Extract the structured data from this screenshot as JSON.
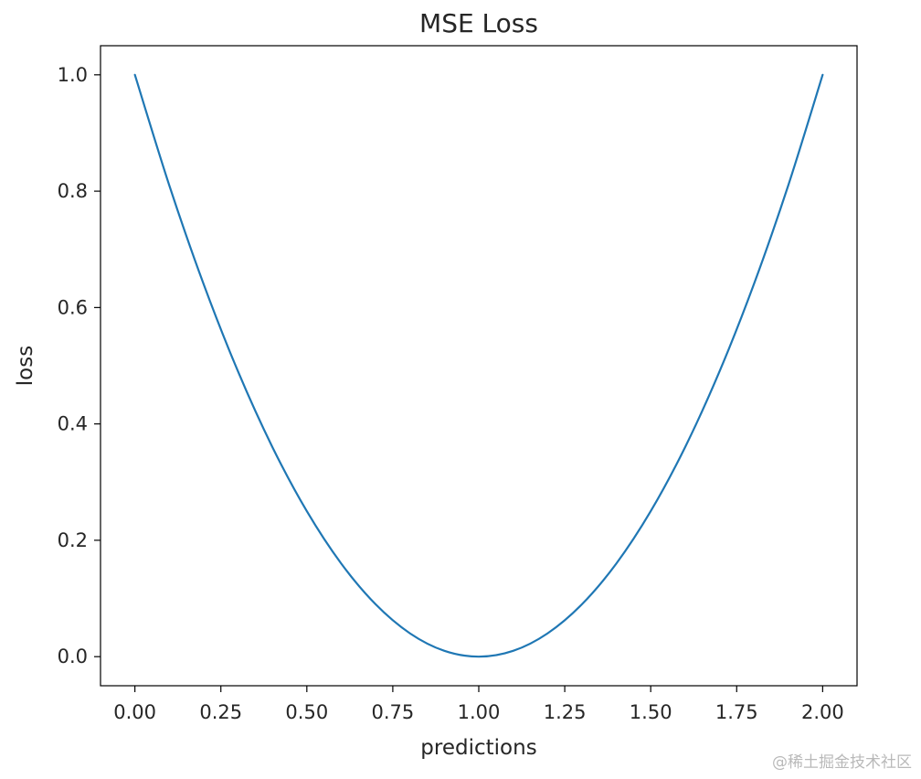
{
  "chart_data": {
    "type": "line",
    "title": "MSE Loss",
    "xlabel": "predictions",
    "ylabel": "loss",
    "xlim": [
      -0.1,
      2.1
    ],
    "ylim": [
      -0.05,
      1.05
    ],
    "xticks": [
      0.0,
      0.25,
      0.5,
      0.75,
      1.0,
      1.25,
      1.5,
      1.75,
      2.0
    ],
    "xtick_labels": [
      "0.00",
      "0.25",
      "0.50",
      "0.75",
      "1.00",
      "1.25",
      "1.50",
      "1.75",
      "2.00"
    ],
    "yticks": [
      0.0,
      0.2,
      0.4,
      0.6,
      0.8,
      1.0
    ],
    "ytick_labels": [
      "0.0",
      "0.2",
      "0.4",
      "0.6",
      "0.8",
      "1.0"
    ],
    "grid": false,
    "series": [
      {
        "name": "MSE loss",
        "color": "#1f77b4",
        "x": [
          0.0,
          0.1,
          0.2,
          0.3,
          0.4,
          0.5,
          0.6,
          0.7,
          0.8,
          0.9,
          1.0,
          1.1,
          1.2,
          1.3,
          1.4,
          1.5,
          1.6,
          1.7,
          1.8,
          1.9,
          2.0
        ],
        "values": [
          1.0,
          0.81,
          0.64,
          0.49,
          0.36,
          0.25,
          0.16,
          0.09,
          0.04,
          0.01,
          0.0,
          0.01,
          0.04,
          0.09,
          0.16,
          0.25,
          0.36,
          0.49,
          0.64,
          0.81,
          1.0
        ]
      }
    ]
  },
  "watermark": "@稀土掘金技术社区"
}
